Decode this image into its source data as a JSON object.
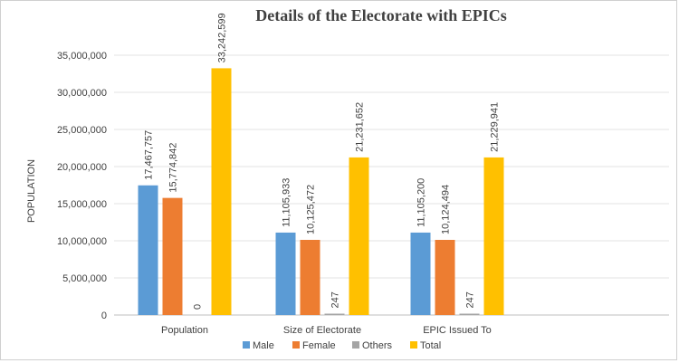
{
  "chart_data": {
    "type": "bar",
    "title": "Details of the Electorate with EPICs",
    "ylabel": "POPULATION",
    "xlabel": "",
    "categories": [
      "Population",
      "Size of Electorate",
      "EPIC Issued To"
    ],
    "series": [
      {
        "name": "Male",
        "color": "#5b9bd5",
        "values": [
          17467757,
          11105933,
          11105200
        ],
        "labels": [
          "17,467,757",
          "11,105,933",
          "11,105,200"
        ]
      },
      {
        "name": "Female",
        "color": "#ed7d31",
        "values": [
          15774842,
          10125472,
          10124494
        ],
        "labels": [
          "15,774,842",
          "10,125,472",
          "10,124,494"
        ]
      },
      {
        "name": "Others",
        "color": "#a5a5a5",
        "values": [
          0,
          247,
          247
        ],
        "labels": [
          "0",
          "247",
          "247"
        ]
      },
      {
        "name": "Total",
        "color": "#ffc000",
        "values": [
          33242599,
          21231652,
          21229941
        ],
        "labels": [
          "33,242,599",
          "21,231,652",
          "21,229,941"
        ]
      }
    ],
    "ylim": [
      0,
      35000000
    ],
    "yticks": [
      0,
      5000000,
      10000000,
      15000000,
      20000000,
      25000000,
      30000000,
      35000000
    ],
    "ytick_labels": [
      "0",
      "5,000,000",
      "10,000,000",
      "15,000,000",
      "20,000,000",
      "25,000,000",
      "30,000,000",
      "35,000,000"
    ],
    "grid": true,
    "legend_position": "bottom"
  }
}
